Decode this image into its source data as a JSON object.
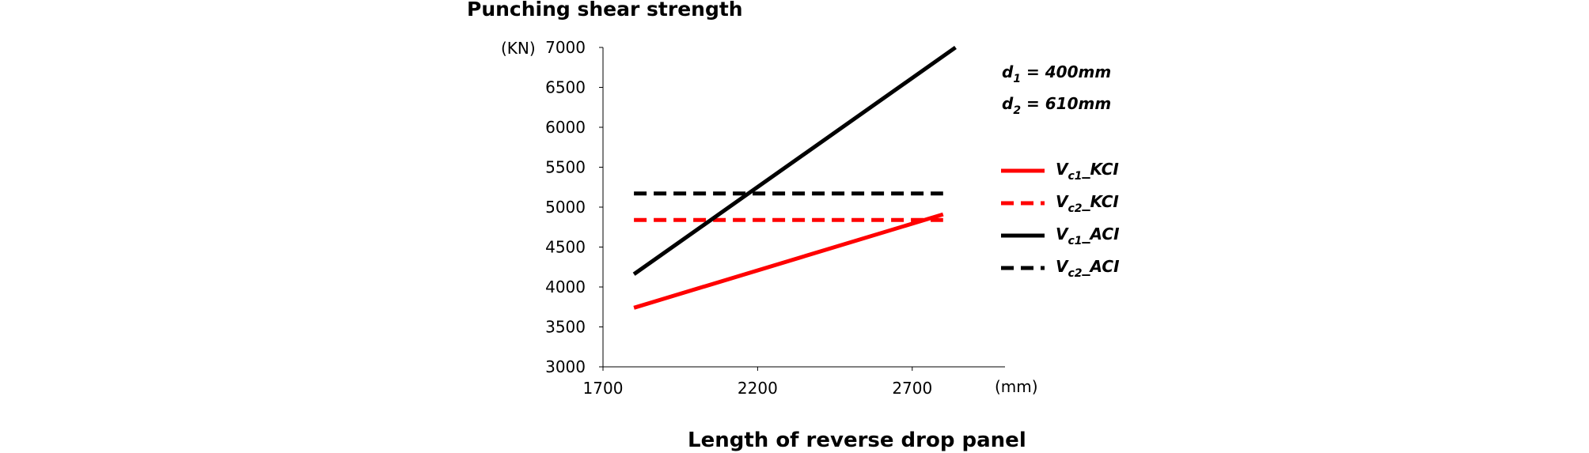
{
  "chart_data": {
    "type": "line",
    "title": "Punching shear strength",
    "xlabel": "Length of reverse drop panel",
    "xunit": "(mm)",
    "yunit": "(KN)",
    "xlim": [
      1700,
      3000
    ],
    "ylim": [
      3000,
      7000
    ],
    "x_ticks": [
      "1700",
      "2200",
      "2700"
    ],
    "y_ticks": [
      "3000",
      "3500",
      "4000",
      "4500",
      "5000",
      "5500",
      "6000",
      "6500",
      "7000"
    ],
    "grid": false,
    "legend_position": "right",
    "annotations": [
      {
        "sym": "d",
        "sub": "1",
        "rest": " = 400mm"
      },
      {
        "sym": "d",
        "sub": "2",
        "rest": " = 610mm"
      }
    ],
    "series": [
      {
        "sym": "V",
        "sub": "c1",
        "rest": "_KCI",
        "color": "#ff0000",
        "dash": "solid",
        "x": [
          1800,
          2800
        ],
        "y": [
          3740,
          4910
        ]
      },
      {
        "sym": "V",
        "sub": "c2",
        "rest": "_KCI",
        "color": "#ff0000",
        "dash": "dashed",
        "x": [
          1800,
          2800
        ],
        "y": [
          4840,
          4840
        ]
      },
      {
        "sym": "V",
        "sub": "c1",
        "rest": "_ACI",
        "color": "#000000",
        "dash": "solid",
        "x": [
          1800,
          2840
        ],
        "y": [
          4160,
          7000
        ]
      },
      {
        "sym": "V",
        "sub": "c2",
        "rest": "_ACI",
        "color": "#000000",
        "dash": "dashed",
        "x": [
          1800,
          2800
        ],
        "y": [
          5170,
          5170
        ]
      }
    ]
  }
}
